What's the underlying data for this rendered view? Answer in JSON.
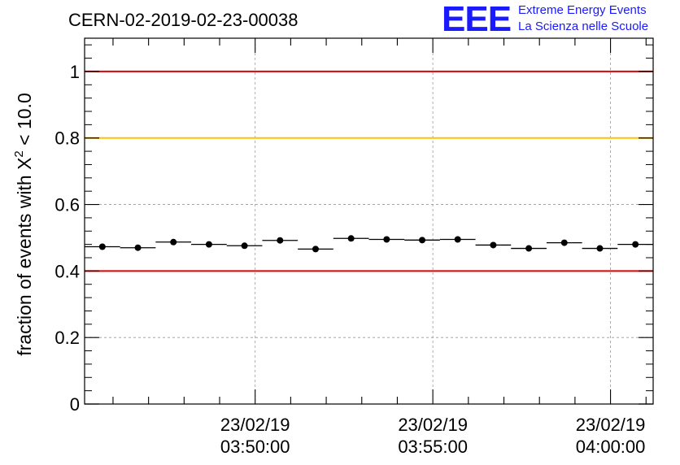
{
  "run_title": "CERN-02-2019-02-23-00038",
  "logo": {
    "mark": "EEE",
    "line1": "Extreme Energy Events",
    "line2": "La Scienza nelle Scuole",
    "color": "#1a1aff"
  },
  "chart_data": {
    "type": "scatter",
    "title": "CERN-02-2019-02-23-00038",
    "ylabel_prefix": "fraction of events with ",
    "ylabel_symbol": "X",
    "ylabel_exponent": "2",
    "ylabel_suffix": " < 10.0",
    "ylim": [
      0,
      1.1
    ],
    "y_ticks": [
      "0",
      "0.2",
      "0.4",
      "0.6",
      "0.8",
      "1"
    ],
    "y_tick_values": [
      0,
      0.2,
      0.4,
      0.6,
      0.8,
      1.0
    ],
    "x_tick_labels": [
      {
        "minute": 50,
        "date": "23/02/19",
        "time": "03:50:00"
      },
      {
        "minute": 55,
        "date": "23/02/19",
        "time": "03:55:00"
      },
      {
        "minute": 60,
        "date": "23/02/19",
        "time": "04:00:00"
      }
    ],
    "xlim_minutes": [
      45.2,
      61.2
    ],
    "bin_width_minutes": 1.0,
    "threshold_lines": [
      {
        "name": "upper-red-line",
        "value": 1.0,
        "color": "#e00000"
      },
      {
        "name": "yellow-line",
        "value": 0.8,
        "color": "#ffc000"
      },
      {
        "name": "lower-red-line",
        "value": 0.4,
        "color": "#e00000"
      }
    ],
    "grid": true,
    "points": [
      {
        "x": 45.7,
        "y": 0.473
      },
      {
        "x": 46.7,
        "y": 0.47
      },
      {
        "x": 47.7,
        "y": 0.487
      },
      {
        "x": 48.7,
        "y": 0.48
      },
      {
        "x": 49.7,
        "y": 0.476
      },
      {
        "x": 50.7,
        "y": 0.492
      },
      {
        "x": 51.7,
        "y": 0.466
      },
      {
        "x": 52.7,
        "y": 0.498
      },
      {
        "x": 53.7,
        "y": 0.495
      },
      {
        "x": 54.7,
        "y": 0.493
      },
      {
        "x": 55.7,
        "y": 0.495
      },
      {
        "x": 56.7,
        "y": 0.478
      },
      {
        "x": 57.7,
        "y": 0.468
      },
      {
        "x": 58.7,
        "y": 0.485
      },
      {
        "x": 59.7,
        "y": 0.468
      },
      {
        "x": 60.7,
        "y": 0.48
      }
    ]
  }
}
